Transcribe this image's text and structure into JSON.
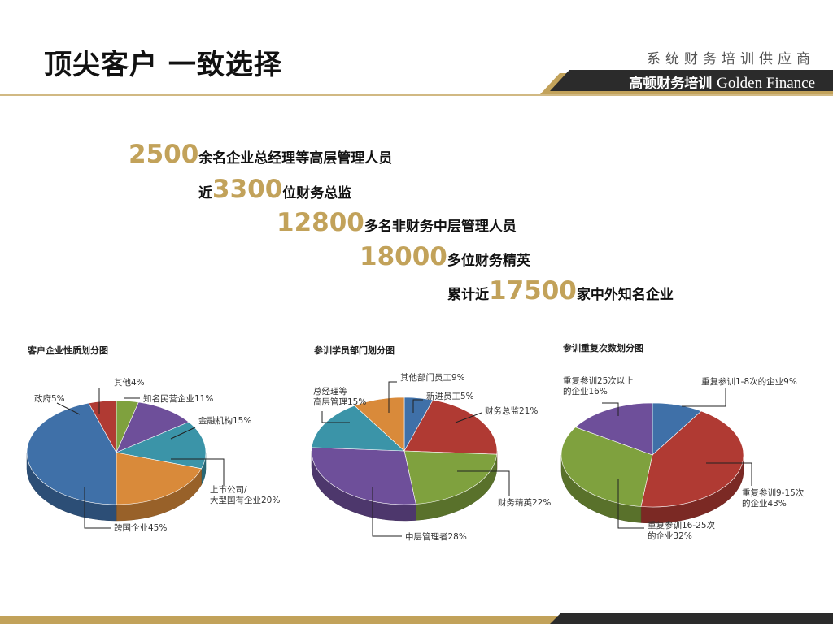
{
  "header": {
    "title": "顶尖客户 一致选择",
    "brand_subtitle": "系统财务培训供应商",
    "brand_cn": "高顿财务培训",
    "brand_en": "Golden Finance"
  },
  "stats": [
    {
      "prefix": "",
      "number": "2500",
      "suffix": "余名企业总经理等高层管理人员"
    },
    {
      "prefix": "近",
      "number": "3300",
      "suffix": "位财务总监"
    },
    {
      "prefix": "",
      "number": "12800",
      "suffix": "多名非财务中层管理人员"
    },
    {
      "prefix": "",
      "number": "18000",
      "suffix": "多位财务精英"
    },
    {
      "prefix": "累计近",
      "number": "17500",
      "suffix": "家中外知名企业"
    }
  ],
  "colors": {
    "gold": "#c2a25a",
    "dark": "#2b2b2b",
    "blue": "#3f70a8",
    "orange": "#d98a3a",
    "teal": "#3b94a8",
    "purple": "#6e4f9a",
    "green": "#7fa13e",
    "gray": "#a8a8a8",
    "red": "#b03a33"
  },
  "chart_data": [
    {
      "type": "pie",
      "title": "客户企业性质划分图",
      "slices": [
        {
          "label": "其他4%",
          "value": 4,
          "color": "#7fa13e"
        },
        {
          "label": "知名民营企业11%",
          "value": 11,
          "color": "#6e4f9a"
        },
        {
          "label": "金融机构15%",
          "value": 15,
          "color": "#3b94a8"
        },
        {
          "label": "上市公司/大型国有企业20%",
          "value": 20,
          "color": "#d98a3a"
        },
        {
          "label": "跨国企业45%",
          "value": 45,
          "color": "#3f70a8"
        },
        {
          "label": "政府5%",
          "value": 5,
          "color": "#b03a33"
        }
      ]
    },
    {
      "type": "pie",
      "title": "参训学员部门划分图",
      "slices": [
        {
          "label": "新进员工5%",
          "value": 5,
          "color": "#3f70a8"
        },
        {
          "label": "财务总监21%",
          "value": 21,
          "color": "#b03a33"
        },
        {
          "label": "财务精英22%",
          "value": 22,
          "color": "#7fa13e"
        },
        {
          "label": "中层管理者28%",
          "value": 28,
          "color": "#6e4f9a"
        },
        {
          "label": "总经理等高层管理15%",
          "value": 15,
          "color": "#3b94a8"
        },
        {
          "label": "其他部门员工9%",
          "value": 9,
          "color": "#d98a3a"
        }
      ]
    },
    {
      "type": "pie",
      "title": "参训重复次数划分图",
      "slices": [
        {
          "label": "重复参训1-8次的企业9%",
          "value": 9,
          "color": "#3f70a8"
        },
        {
          "label": "重复参训9-15次的企业43%",
          "value": 43,
          "color": "#b03a33"
        },
        {
          "label": "重复参训16-25次的企业32%",
          "value": 32,
          "color": "#7fa13e"
        },
        {
          "label": "重复参训25次以上的企业16%",
          "value": 16,
          "color": "#6e4f9a"
        }
      ]
    }
  ]
}
